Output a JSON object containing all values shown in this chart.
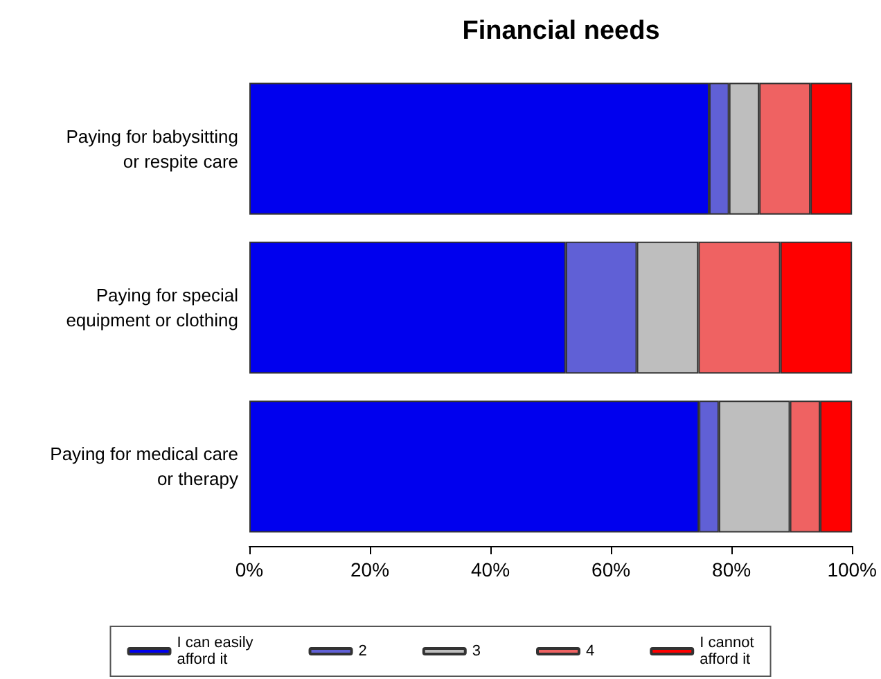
{
  "chart_data": {
    "type": "bar",
    "title": "Financial needs",
    "orientation": "horizontal",
    "stacked": true,
    "categories": [
      "Paying for babysitting\nor respite care",
      "Paying for special\nequipment or clothing",
      "Paying for medical care\nor therapy"
    ],
    "series": [
      {
        "name": "I can easily\nafford it",
        "color": "#0000ee",
        "values": [
          76.3,
          52.5,
          74.6
        ]
      },
      {
        "name": "2",
        "color": "#6060d6",
        "values": [
          3.3,
          11.8,
          3.3
        ]
      },
      {
        "name": "3",
        "color": "#bebebe",
        "values": [
          5.0,
          10.2,
          11.8
        ]
      },
      {
        "name": "4",
        "color": "#ef6262",
        "values": [
          8.5,
          13.6,
          5.0
        ]
      },
      {
        "name": "I cannot\nafford it",
        "color": "#ff0000",
        "values": [
          6.9,
          11.9,
          5.3
        ]
      }
    ],
    "xlim": [
      0,
      100
    ],
    "xticks": [
      {
        "value": 0,
        "label": "0%"
      },
      {
        "value": 20,
        "label": "20%"
      },
      {
        "value": 40,
        "label": "40%"
      },
      {
        "value": 60,
        "label": "60%"
      },
      {
        "value": 80,
        "label": "80%"
      },
      {
        "value": 100,
        "label": "100%"
      }
    ],
    "grid": false,
    "legend": "bottom"
  }
}
